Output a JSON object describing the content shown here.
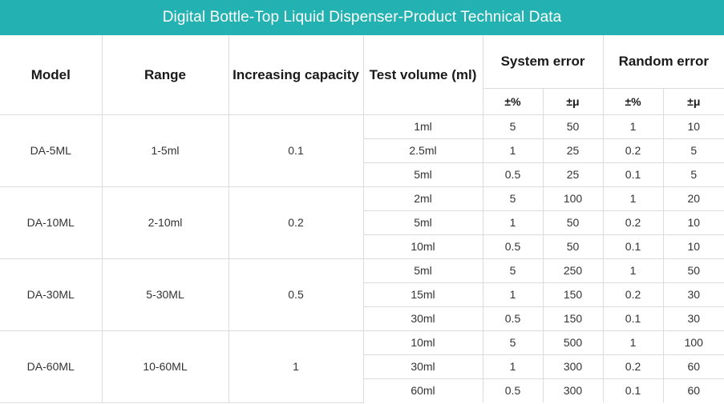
{
  "title": "Digital Bottle-Top Liquid Dispenser-Product Technical Data",
  "headers": {
    "model": "Model",
    "range": "Range",
    "increasing_capacity": "Increasing capacity",
    "test_volume": "Test volume (ml)",
    "system_error": "System error",
    "random_error": "Random error",
    "sub_percent": "±%",
    "sub_mu": "±μ"
  },
  "groups": [
    {
      "model": "DA-5ML",
      "range": "1-5ml",
      "increment": "0.1",
      "rows": [
        {
          "volume": "1ml",
          "sys_pct": "5",
          "sys_mu": "50",
          "rnd_pct": "1",
          "rnd_mu": "10"
        },
        {
          "volume": "2.5ml",
          "sys_pct": "1",
          "sys_mu": "25",
          "rnd_pct": "0.2",
          "rnd_mu": "5"
        },
        {
          "volume": "5ml",
          "sys_pct": "0.5",
          "sys_mu": "25",
          "rnd_pct": "0.1",
          "rnd_mu": "5"
        }
      ]
    },
    {
      "model": "DA-10ML",
      "range": "2-10ml",
      "increment": "0.2",
      "rows": [
        {
          "volume": "2ml",
          "sys_pct": "5",
          "sys_mu": "100",
          "rnd_pct": "1",
          "rnd_mu": "20"
        },
        {
          "volume": "5ml",
          "sys_pct": "1",
          "sys_mu": "50",
          "rnd_pct": "0.2",
          "rnd_mu": "10"
        },
        {
          "volume": "10ml",
          "sys_pct": "0.5",
          "sys_mu": "50",
          "rnd_pct": "0.1",
          "rnd_mu": "10"
        }
      ]
    },
    {
      "model": "DA-30ML",
      "range": "5-30ML",
      "increment": "0.5",
      "rows": [
        {
          "volume": "5ml",
          "sys_pct": "5",
          "sys_mu": "250",
          "rnd_pct": "1",
          "rnd_mu": "50"
        },
        {
          "volume": "15ml",
          "sys_pct": "1",
          "sys_mu": "150",
          "rnd_pct": "0.2",
          "rnd_mu": "30"
        },
        {
          "volume": "30ml",
          "sys_pct": "0.5",
          "sys_mu": "150",
          "rnd_pct": "0.1",
          "rnd_mu": "30"
        }
      ]
    },
    {
      "model": "DA-60ML",
      "range": "10-60ML",
      "increment": "1",
      "rows": [
        {
          "volume": "10ml",
          "sys_pct": "5",
          "sys_mu": "500",
          "rnd_pct": "1",
          "rnd_mu": "100"
        },
        {
          "volume": "30ml",
          "sys_pct": "1",
          "sys_mu": "300",
          "rnd_pct": "0.2",
          "rnd_mu": "60"
        },
        {
          "volume": "60ml",
          "sys_pct": "0.5",
          "sys_mu": "300",
          "rnd_pct": "0.1",
          "rnd_mu": "60"
        }
      ]
    }
  ],
  "colors": {
    "title_bar": "#24b1b1",
    "grid_line": "#dcdcdc"
  }
}
